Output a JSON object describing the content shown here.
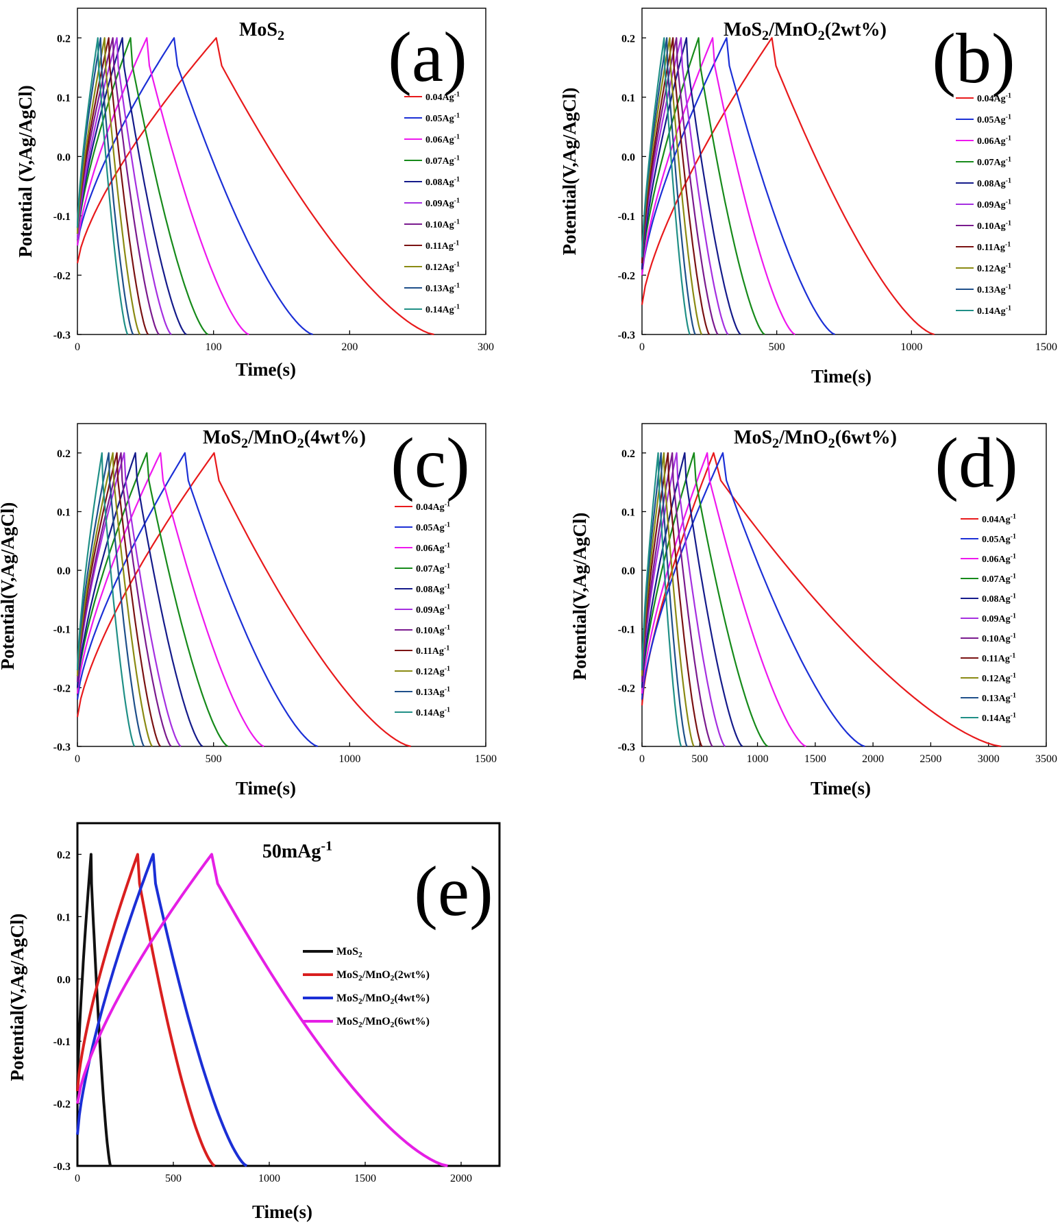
{
  "figure": {
    "background": "#ffffff",
    "panel_label_color": "#000000"
  },
  "chart_data": [
    {
      "panel": "(a)",
      "type": "line",
      "title": "MoS2",
      "title_parts": [
        {
          "t": "MoS"
        },
        {
          "t": "2",
          "sub": true
        }
      ],
      "xlabel": "Time(s)",
      "ylabel": "Potential (V,Ag/AgCl)",
      "xlim": [
        0,
        300
      ],
      "ylim": [
        -0.3,
        0.25
      ],
      "xticks": [
        0,
        100,
        200,
        300
      ],
      "yticks": [
        -0.3,
        -0.2,
        -0.1,
        0.0,
        0.1,
        0.2
      ],
      "ytick_labels": [
        "-0.3",
        "-0.2",
        "-0.1",
        "0.0",
        "0.1",
        "0.2"
      ],
      "legend_position": "right",
      "series": [
        {
          "name": "0.04Ag-1",
          "color": "#e8191b",
          "start": -0.18,
          "peak_x": 102,
          "end_x": 262
        },
        {
          "name": "0.05Ag-1",
          "color": "#1b2fd6",
          "start": -0.15,
          "peak_x": 71,
          "end_x": 173
        },
        {
          "name": "0.06Ag-1",
          "color": "#ee17ee",
          "start": -0.15,
          "peak_x": 51,
          "end_x": 126
        },
        {
          "name": "0.07Ag-1",
          "color": "#168a1a",
          "start": -0.14,
          "peak_x": 39,
          "end_x": 96
        },
        {
          "name": "0.08Ag-1",
          "color": "#141a8a",
          "start": -0.14,
          "peak_x": 33,
          "end_x": 80
        },
        {
          "name": "0.09Ag-1",
          "color": "#a52fe0",
          "start": -0.14,
          "peak_x": 29,
          "end_x": 69
        },
        {
          "name": "0.10Ag-1",
          "color": "#7a1a8e",
          "start": -0.13,
          "peak_x": 26,
          "end_x": 60
        },
        {
          "name": "0.11Ag-1",
          "color": "#7a1212",
          "start": -0.13,
          "peak_x": 23,
          "end_x": 52
        },
        {
          "name": "0.12Ag-1",
          "color": "#8a8a12",
          "start": -0.13,
          "peak_x": 20,
          "end_x": 46
        },
        {
          "name": "0.13Ag-1",
          "color": "#1e4f8a",
          "start": -0.12,
          "peak_x": 17,
          "end_x": 41
        },
        {
          "name": "0.14Ag-1",
          "color": "#1f8f86",
          "start": -0.12,
          "peak_x": 15,
          "end_x": 37
        }
      ]
    },
    {
      "panel": "(b)",
      "type": "line",
      "title": "MoS2/MnO2(2wt%)",
      "title_parts": [
        {
          "t": "MoS"
        },
        {
          "t": "2",
          "sub": true
        },
        {
          "t": "/MnO"
        },
        {
          "t": "2",
          "sub": true
        },
        {
          "t": "(2wt%)"
        }
      ],
      "xlabel": "Time(s)",
      "ylabel": "Potential(V,Ag/AgCl)",
      "xlim": [
        0,
        1500
      ],
      "ylim": [
        -0.3,
        0.25
      ],
      "xticks": [
        0,
        500,
        1000,
        1500
      ],
      "yticks": [
        -0.3,
        -0.2,
        -0.1,
        0.0,
        0.1,
        0.2
      ],
      "ytick_labels": [
        "-0.3",
        "-0.2",
        "-0.1",
        "0.0",
        "0.1",
        "0.2"
      ],
      "legend_position": "right",
      "series": [
        {
          "name": "0.04Ag-1",
          "color": "#e8191b",
          "start": -0.25,
          "peak_x": 482,
          "end_x": 1085
        },
        {
          "name": "0.05Ag-1",
          "color": "#1b2fd6",
          "start": -0.2,
          "peak_x": 314,
          "end_x": 716
        },
        {
          "name": "0.06Ag-1",
          "color": "#ee17ee",
          "start": -0.2,
          "peak_x": 262,
          "end_x": 568
        },
        {
          "name": "0.07Ag-1",
          "color": "#168a1a",
          "start": -0.19,
          "peak_x": 210,
          "end_x": 455
        },
        {
          "name": "0.08Ag-1",
          "color": "#141a8a",
          "start": -0.19,
          "peak_x": 165,
          "end_x": 366
        },
        {
          "name": "0.09Ag-1",
          "color": "#a52fe0",
          "start": -0.18,
          "peak_x": 145,
          "end_x": 320
        },
        {
          "name": "0.10Ag-1",
          "color": "#7a1a8e",
          "start": -0.18,
          "peak_x": 128,
          "end_x": 282
        },
        {
          "name": "0.11Ag-1",
          "color": "#7a1212",
          "start": -0.18,
          "peak_x": 115,
          "end_x": 250
        },
        {
          "name": "0.12Ag-1",
          "color": "#8a8a12",
          "start": -0.17,
          "peak_x": 103,
          "end_x": 222
        },
        {
          "name": "0.13Ag-1",
          "color": "#1e4f8a",
          "start": -0.17,
          "peak_x": 92,
          "end_x": 198
        },
        {
          "name": "0.14Ag-1",
          "color": "#1f8f86",
          "start": -0.17,
          "peak_x": 82,
          "end_x": 178
        }
      ]
    },
    {
      "panel": "(c)",
      "type": "line",
      "title": "MoS2/MnO2(4wt%)",
      "title_parts": [
        {
          "t": "MoS"
        },
        {
          "t": "2",
          "sub": true
        },
        {
          "t": "/MnO"
        },
        {
          "t": "2",
          "sub": true
        },
        {
          "t": "(4wt%)"
        }
      ],
      "xlabel": "Time(s)",
      "ylabel": "Potential(V,Ag/AgCl)",
      "xlim": [
        0,
        1500
      ],
      "ylim": [
        -0.3,
        0.25
      ],
      "xticks": [
        0,
        500,
        1000,
        1500
      ],
      "yticks": [
        -0.3,
        -0.2,
        -0.1,
        0.0,
        0.1,
        0.2
      ],
      "ytick_labels": [
        "-0.3",
        "-0.2",
        "-0.1",
        "0.0",
        "0.1",
        "0.2"
      ],
      "legend_position": "right",
      "series": [
        {
          "name": "0.04Ag-1",
          "color": "#e8191b",
          "start": -0.25,
          "peak_x": 502,
          "end_x": 1225
        },
        {
          "name": "0.05Ag-1",
          "color": "#1b2fd6",
          "start": -0.22,
          "peak_x": 395,
          "end_x": 883
        },
        {
          "name": "0.06Ag-1",
          "color": "#ee17ee",
          "start": -0.21,
          "peak_x": 305,
          "end_x": 685
        },
        {
          "name": "0.07Ag-1",
          "color": "#168a1a",
          "start": -0.2,
          "peak_x": 255,
          "end_x": 553
        },
        {
          "name": "0.08Ag-1",
          "color": "#141a8a",
          "start": -0.2,
          "peak_x": 213,
          "end_x": 460
        },
        {
          "name": "0.09Ag-1",
          "color": "#a52fe0",
          "start": -0.19,
          "peak_x": 172,
          "end_x": 380
        },
        {
          "name": "0.10Ag-1",
          "color": "#7a1a8e",
          "start": -0.19,
          "peak_x": 160,
          "end_x": 345
        },
        {
          "name": "0.11Ag-1",
          "color": "#7a1212",
          "start": -0.18,
          "peak_x": 145,
          "end_x": 305
        },
        {
          "name": "0.12Ag-1",
          "color": "#8a8a12",
          "start": -0.18,
          "peak_x": 130,
          "end_x": 275
        },
        {
          "name": "0.13Ag-1",
          "color": "#1e4f8a",
          "start": -0.17,
          "peak_x": 115,
          "end_x": 245
        },
        {
          "name": "0.14Ag-1",
          "color": "#1f8f86",
          "start": -0.17,
          "peak_x": 90,
          "end_x": 210
        }
      ]
    },
    {
      "panel": "(d)",
      "type": "line",
      "title": "MoS2/MnO2(6wt%)",
      "title_parts": [
        {
          "t": "MoS"
        },
        {
          "t": "2",
          "sub": true
        },
        {
          "t": "/MnO"
        },
        {
          "t": "2",
          "sub": true
        },
        {
          "t": "(6wt%)"
        }
      ],
      "xlabel": "Time(s)",
      "ylabel": "Potential(V,Ag/AgCl)",
      "xlim": [
        0,
        3500
      ],
      "ylim": [
        -0.3,
        0.25
      ],
      "xticks": [
        0,
        500,
        1000,
        1500,
        2000,
        2500,
        3000,
        3500
      ],
      "yticks": [
        -0.3,
        -0.2,
        -0.1,
        0.0,
        0.1,
        0.2
      ],
      "ytick_labels": [
        "-0.3",
        "-0.2",
        "-0.1",
        "0.0",
        "0.1",
        "0.2"
      ],
      "legend_position": "right",
      "series": [
        {
          "name": "0.04Ag-1",
          "color": "#e8191b",
          "start": -0.23,
          "peak_x": 620,
          "end_x": 3110
        },
        {
          "name": "0.05Ag-1",
          "color": "#1b2fd6",
          "start": -0.22,
          "peak_x": 700,
          "end_x": 1930
        },
        {
          "name": "0.06Ag-1",
          "color": "#ee17ee",
          "start": -0.21,
          "peak_x": 565,
          "end_x": 1420
        },
        {
          "name": "0.07Ag-1",
          "color": "#168a1a",
          "start": -0.2,
          "peak_x": 450,
          "end_x": 1090
        },
        {
          "name": "0.08Ag-1",
          "color": "#141a8a",
          "start": -0.2,
          "peak_x": 370,
          "end_x": 870
        },
        {
          "name": "0.09Ag-1",
          "color": "#a52fe0",
          "start": -0.19,
          "peak_x": 300,
          "end_x": 720
        },
        {
          "name": "0.10Ag-1",
          "color": "#7a1a8e",
          "start": -0.19,
          "peak_x": 262,
          "end_x": 610
        },
        {
          "name": "0.11Ag-1",
          "color": "#7a1212",
          "start": -0.18,
          "peak_x": 225,
          "end_x": 520
        },
        {
          "name": "0.12Ag-1",
          "color": "#8a8a12",
          "start": -0.18,
          "peak_x": 190,
          "end_x": 450
        },
        {
          "name": "0.13Ag-1",
          "color": "#1e4f8a",
          "start": -0.17,
          "peak_x": 165,
          "end_x": 390
        },
        {
          "name": "0.14Ag-1",
          "color": "#1f8f86",
          "start": -0.17,
          "peak_x": 140,
          "end_x": 340
        }
      ]
    },
    {
      "panel": "(e)",
      "type": "line",
      "title": "50mAg-1",
      "title_parts": [
        {
          "t": "50mAg"
        },
        {
          "t": "-1",
          "sup": true
        }
      ],
      "xlabel": "Time(s)",
      "ylabel": "Potential(V,Ag/AgCl)",
      "xlim": [
        0,
        2200
      ],
      "ylim": [
        -0.3,
        0.25
      ],
      "xticks": [
        0,
        500,
        1000,
        1500,
        2000
      ],
      "yticks": [
        -0.3,
        -0.2,
        -0.1,
        0.0,
        0.1,
        0.2
      ],
      "ytick_labels": [
        "-0.3",
        "-0.2",
        "-0.1",
        "0.0",
        "0.1",
        "0.2"
      ],
      "legend_position": "right",
      "series": [
        {
          "name": "MoS2",
          "name_parts": [
            {
              "t": "MoS"
            },
            {
              "t": "2",
              "sub": true
            }
          ],
          "color": "#111111",
          "start": -0.18,
          "peak_x": 71,
          "end_x": 173
        },
        {
          "name": "MoS2/MnO2(2wt%)",
          "name_parts": [
            {
              "t": "MoS"
            },
            {
              "t": "2",
              "sub": true
            },
            {
              "t": "/MnO"
            },
            {
              "t": "2",
              "sub": true
            },
            {
              "t": "(2wt%)"
            }
          ],
          "color": "#d91f1f",
          "start": -0.18,
          "peak_x": 314,
          "end_x": 716
        },
        {
          "name": "MoS2/MnO2(4wt%)",
          "name_parts": [
            {
              "t": "MoS"
            },
            {
              "t": "2",
              "sub": true
            },
            {
              "t": "/MnO"
            },
            {
              "t": "2",
              "sub": true
            },
            {
              "t": "(4wt%)"
            }
          ],
          "color": "#1b2fd6",
          "start": -0.25,
          "peak_x": 395,
          "end_x": 883
        },
        {
          "name": "MoS2/MnO2(6wt%)",
          "name_parts": [
            {
              "t": "MoS"
            },
            {
              "t": "2",
              "sub": true
            },
            {
              "t": "/MnO"
            },
            {
              "t": "2",
              "sub": true
            },
            {
              "t": "(6wt%)"
            }
          ],
          "color": "#e51fe5",
          "start": -0.2,
          "peak_x": 700,
          "end_x": 1930
        }
      ]
    }
  ]
}
